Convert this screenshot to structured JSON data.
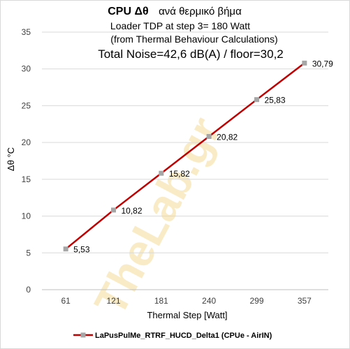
{
  "chart_data": {
    "type": "line",
    "title_bold": "CPU  Δθ",
    "title_rest": "ανά θερμικό βήμα",
    "subtitle_lines": [
      "Loader TDP at step 3= 180 Watt",
      "(from Thermal Behaviour Calculations)"
    ],
    "noise_line": "Total Noise=42,6 dB(A) / floor=30,2",
    "xlabel": "Thermal Step [Watt]",
    "ylabel": "Δθ °C",
    "categories": [
      "61",
      "121",
      "181",
      "240",
      "299",
      "357"
    ],
    "ylim": [
      0,
      35
    ],
    "yticks": [
      "0",
      "5",
      "10",
      "15",
      "20",
      "25",
      "30",
      "35"
    ],
    "series": [
      {
        "name": "LaPusPulMe_RTRF_HUCD_Delta1 (CPUe - AirIN)",
        "values": [
          5.53,
          10.82,
          15.82,
          20.82,
          25.83,
          30.79
        ],
        "labels": [
          "5,53",
          "10,82",
          "15,82",
          "20,82",
          "25,83",
          "30,79"
        ],
        "color": "#c00000",
        "marker_color": "#a6a6a6"
      }
    ],
    "grid": true,
    "legend_position": "bottom",
    "watermark": "TheLab.gr"
  }
}
